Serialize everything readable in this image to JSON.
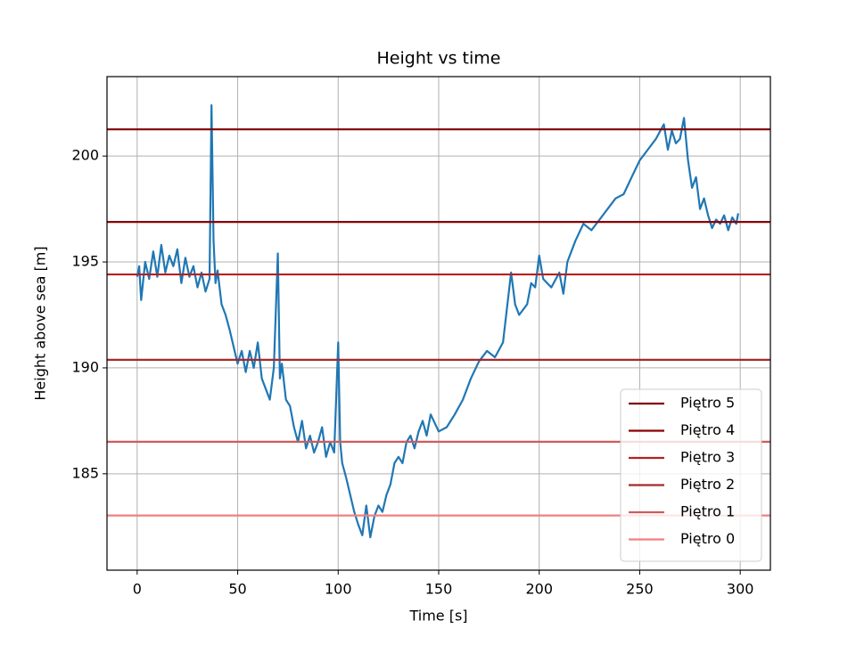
{
  "chart_data": {
    "type": "line",
    "title": "Height vs time",
    "x_label": "Time [s]",
    "y_label": "Height above sea [m]",
    "xlim": [
      -15,
      315
    ],
    "ylim": [
      180.45,
      203.75
    ],
    "xticks": [
      0,
      50,
      100,
      150,
      200,
      250,
      300
    ],
    "yticks": [
      185,
      190,
      195,
      200
    ],
    "grid": true,
    "legend": "lower right",
    "series": [
      {
        "color": "#1f77b4",
        "x": [
          0,
          1,
          2,
          4,
          6,
          8,
          10,
          12,
          14,
          16,
          18,
          20,
          22,
          24,
          26,
          28,
          30,
          32,
          34,
          36,
          37,
          38,
          39,
          40,
          42,
          44,
          46,
          48,
          50,
          52,
          54,
          56,
          58,
          60,
          62,
          64,
          66,
          68,
          70,
          71,
          72,
          74,
          76,
          78,
          80,
          82,
          84,
          86,
          88,
          90,
          92,
          94,
          96,
          98,
          100,
          101,
          102,
          104,
          106,
          108,
          110,
          112,
          114,
          116,
          118,
          120,
          122,
          124,
          126,
          128,
          130,
          132,
          134,
          136,
          138,
          140,
          142,
          144,
          146,
          150,
          154,
          158,
          162,
          166,
          170,
          174,
          178,
          182,
          186,
          188,
          190,
          194,
          196,
          198,
          200,
          202,
          206,
          210,
          212,
          214,
          218,
          222,
          226,
          230,
          234,
          238,
          242,
          246,
          250,
          254,
          258,
          262,
          264,
          266,
          268,
          270,
          272,
          274,
          276,
          278,
          280,
          282,
          284,
          286,
          288,
          290,
          292,
          294,
          296,
          298,
          299
        ],
        "values": [
          194.3,
          194.8,
          193.2,
          195,
          194.2,
          195.5,
          194.3,
          195.8,
          194.5,
          195.3,
          194.8,
          195.6,
          194,
          195.2,
          194.3,
          194.8,
          193.8,
          194.5,
          193.6,
          194.2,
          202.4,
          196,
          194,
          194.6,
          193,
          192.5,
          191.8,
          191,
          190.2,
          190.8,
          189.8,
          190.8,
          190,
          191.2,
          189.5,
          189,
          188.5,
          190,
          195.4,
          189.5,
          190.2,
          188.5,
          188.2,
          187.2,
          186.5,
          187.5,
          186.2,
          186.8,
          186,
          186.5,
          187.2,
          185.8,
          186.5,
          186,
          191.2,
          186.5,
          185.5,
          184.8,
          184,
          183.2,
          182.6,
          182.1,
          183.5,
          182,
          183,
          183.5,
          183.2,
          184,
          184.5,
          185.5,
          185.8,
          185.5,
          186.5,
          186.8,
          186.2,
          187,
          187.5,
          186.8,
          187.8,
          187,
          187.2,
          187.8,
          188.5,
          189.5,
          190.3,
          190.8,
          190.5,
          191.2,
          194.5,
          193,
          192.5,
          193,
          194,
          193.8,
          195.3,
          194.2,
          193.8,
          194.5,
          193.5,
          195,
          196,
          196.8,
          196.5,
          197,
          197.5,
          198,
          198.2,
          199,
          199.8,
          200.3,
          200.8,
          201.5,
          200.3,
          201.2,
          200.6,
          200.8,
          201.8,
          199.8,
          198.5,
          199,
          197.5,
          198,
          197.2,
          196.6,
          197,
          196.8,
          197.2,
          196.5,
          197.1,
          196.8,
          197.3
        ]
      },
      {
        "name": "Piętro 5",
        "color": "#800000",
        "level": 201.26
      },
      {
        "name": "Piętro 4",
        "color": "#8b0000",
        "level": 196.89
      },
      {
        "name": "Piętro 3",
        "color": "#b22222",
        "level": 194.41
      },
      {
        "name": "Piętro 2",
        "color": "#a52a2a",
        "level": 190.38
      },
      {
        "name": "Piętro 1",
        "color": "#cd5c5c",
        "level": 186.51
      },
      {
        "name": "Piętro 0",
        "color": "#f08080",
        "level": 183.03
      }
    ]
  }
}
